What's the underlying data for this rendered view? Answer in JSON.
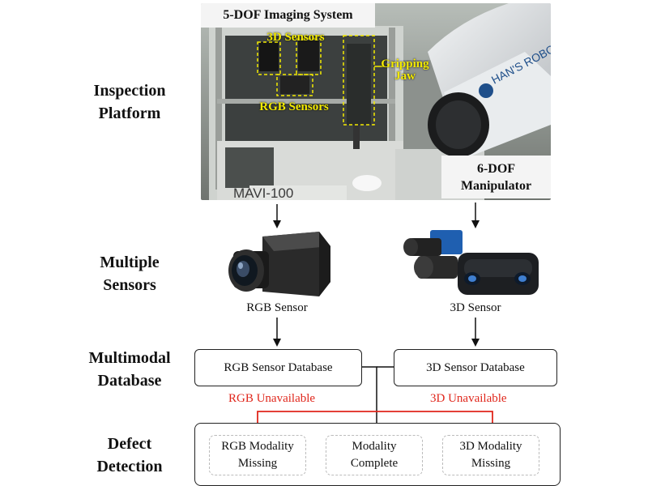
{
  "row_labels": {
    "inspection": "Inspection\nPlatform",
    "sensors": "Multiple\nSensors",
    "database": "Multimodal\nDatabase",
    "defect": "Defect\nDetection"
  },
  "photo": {
    "title": "5-DOF Imaging System",
    "label_3d_sensors": "3D Sensors",
    "label_rgb_sensors": "RGB Sensors",
    "label_gripping_jaw": "Gripping\nJaw",
    "robot_text": "HAN'S ROBOT",
    "machine_text": "MAVI-100"
  },
  "manipulator_label": "6-DOF\nManipulator",
  "sensor_captions": {
    "rgb": "RGB Sensor",
    "d3": "3D Sensor"
  },
  "databases": {
    "rgb": "RGB Sensor Database",
    "d3": "3D Sensor Database"
  },
  "unavailable": {
    "rgb": "RGB Unavailable",
    "d3": "3D Unavailable"
  },
  "modalities": {
    "rgb_missing": "RGB Modality\nMissing",
    "complete": "Modality\nComplete",
    "d3_missing": "3D Modality\nMissing"
  },
  "colors": {
    "accent_red": "#e0261b",
    "annotation_yellow": "#f3ea00"
  }
}
